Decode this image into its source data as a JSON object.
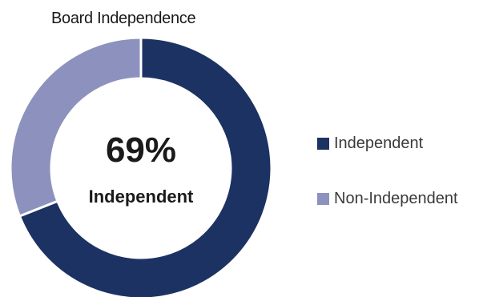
{
  "chart_data": {
    "type": "pie",
    "title": "Board Independence",
    "donut": true,
    "center_value": "69%",
    "center_label": "Independent",
    "slices": [
      {
        "name": "Independent",
        "value": 69,
        "color": "#1c3262"
      },
      {
        "name": "Non-Independent",
        "value": 31,
        "color": "#8c92bd"
      }
    ],
    "legend_placement": "right"
  }
}
